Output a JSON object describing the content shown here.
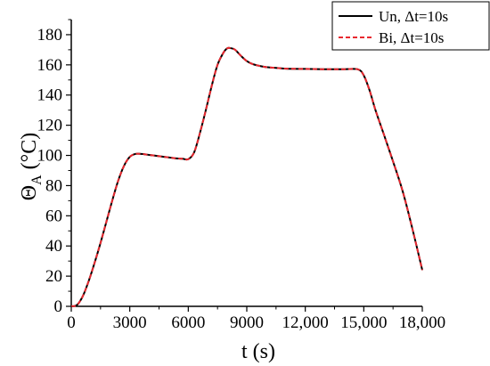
{
  "chart_data": {
    "type": "line",
    "xlabel": "t (s)",
    "ylabel_symbol": "Θ",
    "ylabel_subscript": "A",
    "ylabel_unit": " (°C)",
    "xlim": [
      0,
      18000
    ],
    "ylim": [
      0,
      190
    ],
    "x_ticks": [
      0,
      3000,
      6000,
      9000,
      12000,
      15000,
      18000
    ],
    "x_tick_labels": [
      "0",
      "3000",
      "6000",
      "9000",
      "12,000",
      "15,000",
      "18,000"
    ],
    "y_ticks": [
      0,
      20,
      40,
      60,
      80,
      100,
      120,
      140,
      160,
      180
    ],
    "y_tick_labels": [
      "0",
      "20",
      "40",
      "60",
      "80",
      "100",
      "120",
      "140",
      "160",
      "180"
    ],
    "grid": false,
    "legend_position": "top-right",
    "series": [
      {
        "name": "Un, Δt=10s",
        "color": "#000000",
        "style": "solid",
        "x": [
          0,
          300,
          600,
          900,
          1200,
          1500,
          1800,
          2100,
          2400,
          2700,
          3000,
          3300,
          3600,
          3900,
          4200,
          4500,
          4800,
          5100,
          5400,
          5700,
          6000,
          6300,
          6600,
          6900,
          7200,
          7500,
          7800,
          8000,
          8200,
          8400,
          8700,
          9000,
          9300,
          9600,
          10000,
          10500,
          11000,
          12000,
          13000,
          14000,
          14700,
          15000,
          15300,
          15600,
          16000,
          16500,
          17000,
          17500,
          18000
        ],
        "y": [
          0,
          1,
          7,
          17,
          29,
          42,
          56,
          70,
          83,
          93,
          99,
          101,
          101,
          100.5,
          100,
          99.5,
          99,
          98.5,
          98,
          97.8,
          97.5,
          102,
          115,
          130,
          146,
          160,
          168,
          171,
          171,
          170,
          166,
          162.5,
          160.5,
          159.5,
          158.5,
          158,
          157.5,
          157.3,
          157.1,
          157.1,
          157,
          153,
          143,
          130,
          115,
          96,
          76,
          51,
          24
        ]
      },
      {
        "name": "Bi, Δt=10s",
        "color": "#e8282f",
        "style": "dashed",
        "x": [
          0,
          300,
          600,
          900,
          1200,
          1500,
          1800,
          2100,
          2400,
          2700,
          3000,
          3300,
          3600,
          3900,
          4200,
          4500,
          4800,
          5100,
          5400,
          5700,
          6000,
          6300,
          6600,
          6900,
          7200,
          7500,
          7800,
          8000,
          8200,
          8400,
          8700,
          9000,
          9300,
          9600,
          10000,
          10500,
          11000,
          12000,
          13000,
          14000,
          14700,
          15000,
          15300,
          15600,
          16000,
          16500,
          17000,
          17500,
          18000
        ],
        "y": [
          0,
          1,
          7,
          17,
          29,
          42,
          56,
          70,
          83,
          93,
          99,
          101,
          101,
          100.5,
          100,
          99.5,
          99,
          98.5,
          98,
          97.8,
          97.5,
          102,
          115,
          130,
          146,
          160,
          168,
          171,
          171,
          170,
          166,
          162.5,
          160.5,
          159.5,
          158.5,
          158,
          157.5,
          157.3,
          157.1,
          157.1,
          157,
          153,
          143,
          130,
          115,
          96,
          76,
          51,
          24
        ]
      }
    ]
  }
}
